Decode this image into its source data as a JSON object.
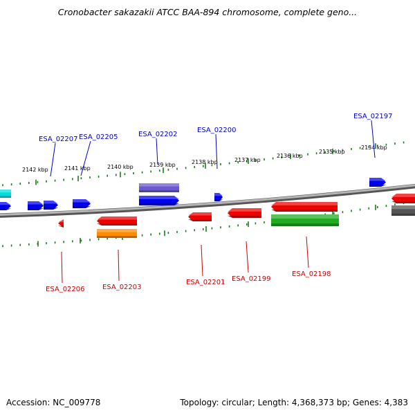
{
  "title": "Cronobacter sakazakii ATCC BAA-894 chromosome, complete geno...",
  "footer": {
    "accession": "Accession: NC_009778",
    "topology": "Topology: circular; Length: 4,368,373 bp; Genes: 4,383"
  },
  "colors": {
    "backbone": "#8a8a8a",
    "tick": "#1f7a1f",
    "forward_label": "#0000cc",
    "reverse_label": "#cc0000",
    "blue": "#0000ee",
    "red": "#ee0000",
    "slateblue": "#6a5acd",
    "orange": "#ff8c00",
    "green": "#22aa22",
    "cyan": "#00dddd",
    "gray": "#555555"
  },
  "ticks": [
    {
      "label": "2142 kbp"
    },
    {
      "label": "2141 kbp"
    },
    {
      "label": "2140 kbp"
    },
    {
      "label": "2139 kbp"
    },
    {
      "label": "2138 kbp"
    },
    {
      "label": "2137 kbp"
    },
    {
      "label": "2136 kbp"
    },
    {
      "label": "2135 kbp"
    },
    {
      "label": "2134 kbp"
    }
  ],
  "forward_labels": [
    {
      "name": "ESA_02207"
    },
    {
      "name": "ESA_02205"
    },
    {
      "name": "ESA_02202"
    },
    {
      "name": "ESA_02200"
    },
    {
      "name": "ESA_02197"
    }
  ],
  "reverse_labels": [
    {
      "name": "ESA_02206"
    },
    {
      "name": "ESA_02203"
    },
    {
      "name": "ESA_02201"
    },
    {
      "name": "ESA_02199"
    },
    {
      "name": "ESA_02198"
    }
  ],
  "features": [
    {
      "name": "cyan-feature",
      "color": "cyan",
      "strand": "forward"
    },
    {
      "name": "blue-feature",
      "color": "blue",
      "strand": "forward"
    },
    {
      "name": "blue-feature",
      "color": "blue",
      "strand": "forward"
    },
    {
      "name": "blue-feature",
      "color": "blue",
      "strand": "forward"
    },
    {
      "name": "blue-feature",
      "color": "blue",
      "strand": "forward"
    },
    {
      "name": "ESA_02202-feature",
      "color": "slateblue",
      "strand": "forward"
    },
    {
      "name": "blue-feature",
      "color": "blue",
      "strand": "forward"
    },
    {
      "name": "ESA_02200-feature",
      "color": "blue",
      "strand": "forward"
    },
    {
      "name": "ESA_02197-feature",
      "color": "blue",
      "strand": "forward"
    },
    {
      "name": "ESA_02206-feature",
      "color": "red",
      "strand": "reverse"
    },
    {
      "name": "red-feature",
      "color": "red",
      "strand": "reverse"
    },
    {
      "name": "ESA_02203-feature",
      "color": "orange",
      "strand": "reverse"
    },
    {
      "name": "ESA_02201-feature",
      "color": "red",
      "strand": "reverse"
    },
    {
      "name": "ESA_02199-feature",
      "color": "red",
      "strand": "reverse"
    },
    {
      "name": "red-feature",
      "color": "red",
      "strand": "reverse"
    },
    {
      "name": "ESA_02198-feature",
      "color": "green",
      "strand": "reverse"
    },
    {
      "name": "red-feature",
      "color": "red",
      "strand": "reverse"
    },
    {
      "name": "gray-feature",
      "color": "gray",
      "strand": "reverse"
    }
  ]
}
